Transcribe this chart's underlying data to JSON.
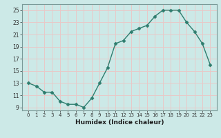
{
  "x": [
    0,
    1,
    2,
    3,
    4,
    5,
    6,
    7,
    8,
    9,
    10,
    11,
    12,
    13,
    14,
    15,
    16,
    17,
    18,
    19,
    20,
    21,
    22,
    23
  ],
  "y": [
    13,
    12.5,
    11.5,
    11.5,
    10,
    9.5,
    9.5,
    9,
    10.5,
    13,
    15.5,
    19.5,
    20,
    21.5,
    22,
    22.5,
    24,
    25,
    25,
    25,
    23,
    21.5,
    19.5,
    16
  ],
  "xlabel": "Humidex (Indice chaleur)",
  "ylim": [
    8.5,
    26
  ],
  "yticks": [
    9,
    11,
    13,
    15,
    17,
    19,
    21,
    23,
    25
  ],
  "xticks": [
    0,
    1,
    2,
    3,
    4,
    5,
    6,
    7,
    8,
    9,
    10,
    11,
    12,
    13,
    14,
    15,
    16,
    17,
    18,
    19,
    20,
    21,
    22,
    23
  ],
  "line_color": "#2e7d6e",
  "marker": "D",
  "marker_size": 2.5,
  "bg_color": "#cce9e7",
  "grid_color": "#e8c8c8",
  "fig_bg": "#cce9e7",
  "spine_color": "#7a9a98"
}
